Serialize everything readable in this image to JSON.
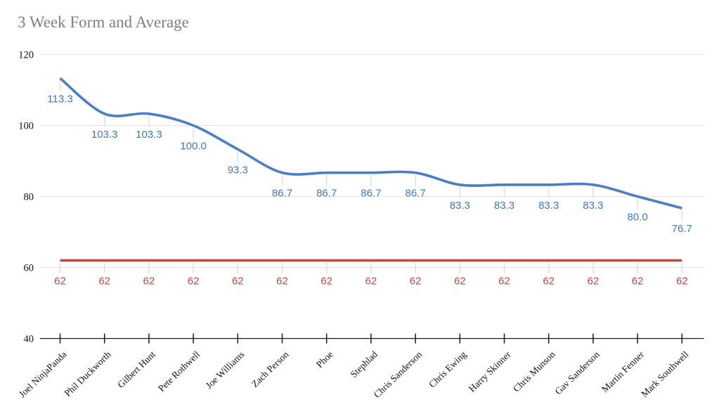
{
  "title": "3 Week Form and Average",
  "chart_data": {
    "type": "line",
    "title": "3 Week Form and Average",
    "curve": "smooth",
    "grid": true,
    "legend_position": "none",
    "xlabel": "",
    "ylabel": "",
    "ylim": [
      40,
      120
    ],
    "yticks": [
      40,
      60,
      80,
      100,
      120
    ],
    "categories": [
      "Joel NinjaPanda",
      "Phil Duckworth",
      "Gilbert Hunt",
      "Pete Rothwell",
      "Joe Williams",
      "Zach Person",
      "Phoe",
      "Stephlad",
      "Chris Sanderson",
      "Chris Ewing",
      "Harry Skinner",
      "Chris Munson",
      "Gav Sanderson",
      "Martin Fenner",
      "Mark Southwell"
    ],
    "series": [
      {
        "name": "3 Week Form",
        "color": "#4a7fc1",
        "label_color": "#4176bd",
        "smooth": true,
        "values": [
          113.3,
          103.3,
          103.3,
          100.0,
          93.3,
          86.7,
          86.7,
          86.7,
          86.7,
          83.3,
          83.3,
          83.3,
          83.3,
          80.0,
          76.7
        ],
        "labels": [
          "113.3",
          "103.3",
          "103.3",
          "100.0",
          "93.3",
          "86.7",
          "86.7",
          "86.7",
          "86.7",
          "83.3",
          "83.3",
          "83.3",
          "83.3",
          "80.0",
          "76.7"
        ]
      },
      {
        "name": "Average",
        "color": "#c5473f",
        "label_color": "#c5473f",
        "smooth": false,
        "values": [
          62,
          62,
          62,
          62,
          62,
          62,
          62,
          62,
          62,
          62,
          62,
          62,
          62,
          62,
          62
        ],
        "labels": [
          "62",
          "62",
          "62",
          "62",
          "62",
          "62",
          "62",
          "62",
          "62",
          "62",
          "62",
          "62",
          "62",
          "62",
          "62"
        ]
      }
    ]
  },
  "style": {
    "title_color": "#7f7f7f",
    "gridline_color": "#e3e3e3",
    "stem_color": "#e0e0e0",
    "axis_color": "#1a1a1a",
    "axis_label_color": "#111111",
    "background": "#ffffff"
  }
}
